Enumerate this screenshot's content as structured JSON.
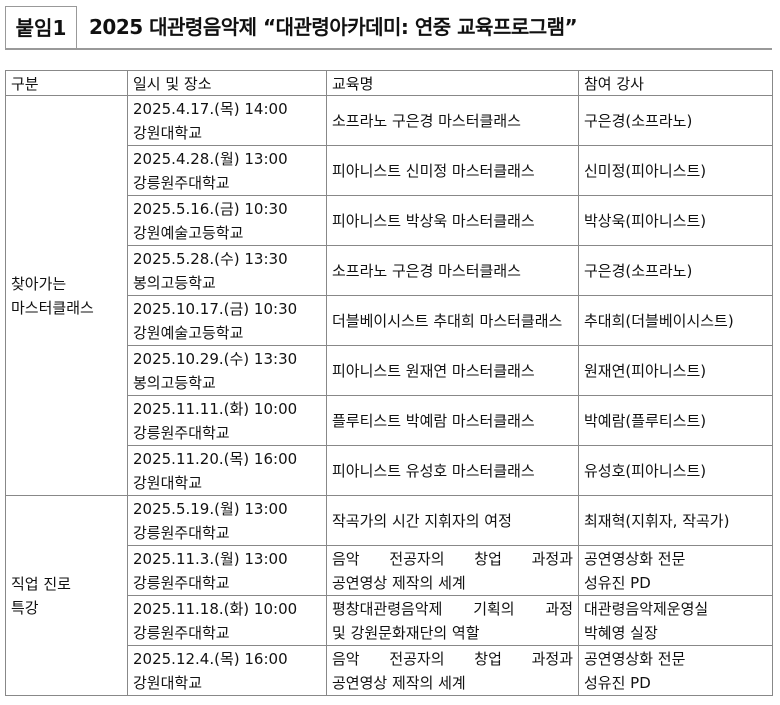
{
  "title": {
    "badge": "붙임1",
    "text": "2025 대관령음악제  “대관령아카데미: 연중 교육프로그램”"
  },
  "table": {
    "headers": [
      "구분",
      "일시 및 장소",
      "교육명",
      "참여 강사"
    ],
    "groups": [
      {
        "category": [
          "찾아가는",
          "마스터클래스"
        ],
        "rows": [
          {
            "date": "2025.4.17.(목) 14:00",
            "place": "강원대학교",
            "program": [
              "소프라노 구은경 마스터클래스"
            ],
            "instructor": [
              "구은경(소프라노)"
            ]
          },
          {
            "date": "2025.4.28.(월) 13:00",
            "place": "강릉원주대학교",
            "program": [
              "피아니스트 신미정 마스터클래스"
            ],
            "instructor": [
              "신미정(피아니스트)"
            ]
          },
          {
            "date": "2025.5.16.(금) 10:30",
            "place": "강원예술고등학교",
            "program": [
              "피아니스트 박상욱 마스터클래스"
            ],
            "instructor": [
              "박상욱(피아니스트)"
            ]
          },
          {
            "date": "2025.5.28.(수) 13:30",
            "place": "봉의고등학교",
            "program": [
              "소프라노 구은경 마스터클래스"
            ],
            "instructor": [
              "구은경(소프라노)"
            ]
          },
          {
            "date": "2025.10.17.(금) 10:30",
            "place": "강원예술고등학교",
            "program": [
              "더블베이시스트 추대희 마스터클래스"
            ],
            "instructor": [
              "추대희(더블베이시스트)"
            ]
          },
          {
            "date": "2025.10.29.(수) 13:30",
            "place": "봉의고등학교",
            "program": [
              "피아니스트 원재연 마스터클래스"
            ],
            "instructor": [
              "원재연(피아니스트)"
            ]
          },
          {
            "date": "2025.11.11.(화) 10:00",
            "place": "강릉원주대학교",
            "program": [
              "플루티스트 박예람 마스터클래스"
            ],
            "instructor": [
              "박예람(플루티스트)"
            ]
          },
          {
            "date": "2025.11.20.(목) 16:00",
            "place": "강원대학교",
            "program": [
              "피아니스트 유성호 마스터클래스"
            ],
            "instructor": [
              "유성호(피아니스트)"
            ]
          }
        ]
      },
      {
        "category": [
          "직업 진로",
          "특강"
        ],
        "rows": [
          {
            "date": "2025.5.19.(월) 13:00",
            "place": "강릉원주대학교",
            "program": [
              "작곡가의 시간 지휘자의 여정"
            ],
            "instructor": [
              "최재혁(지휘자, 작곡가)"
            ]
          },
          {
            "date": "2025.11.3.(월) 13:00",
            "place": "강릉원주대학교",
            "program": [
              "음악 전공자의 창업 과정과",
              "공연영상 제작의 세계"
            ],
            "instructor": [
              "공연영상화 전문",
              "성유진 PD"
            ]
          },
          {
            "date": "2025.11.18.(화) 10:00",
            "place": "강릉원주대학교",
            "program": [
              "평창대관령음악제 기획의 과정",
              "및 강원문화재단의 역할"
            ],
            "instructor": [
              "대관령음악제운영실",
              "박혜영 실장"
            ]
          },
          {
            "date": "2025.12.4.(목) 16:00",
            "place": "강원대학교",
            "program": [
              "음악 전공자의 창업 과정과",
              "공연영상 제작의 세계"
            ],
            "instructor": [
              "공연영상화 전문",
              "성유진 PD"
            ]
          }
        ]
      }
    ]
  }
}
